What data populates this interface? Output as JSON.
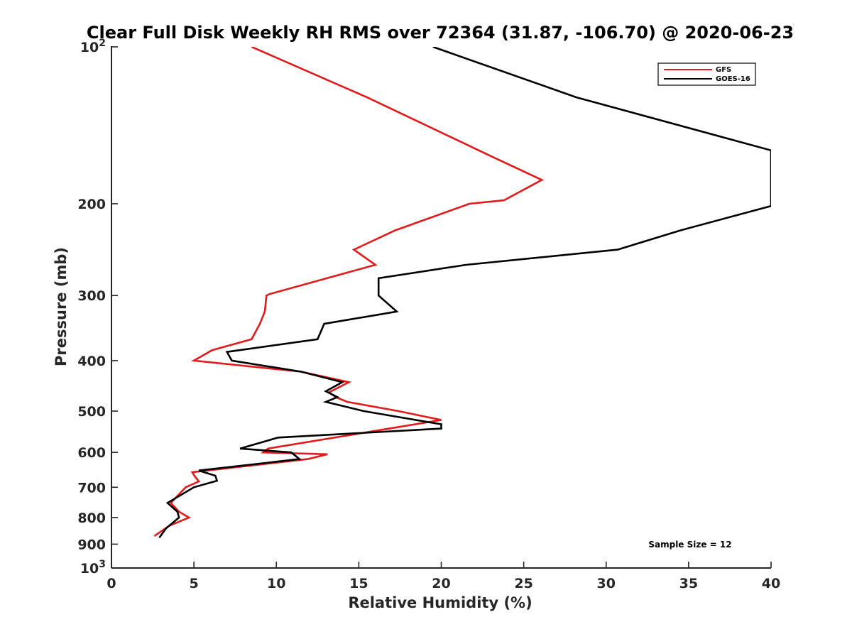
{
  "chart_data": {
    "type": "line",
    "title": "Clear Full Disk Weekly RH RMS over 72364 (31.87, -106.70) @ 2020-06-23",
    "xlabel": "Relative Humidity (%)",
    "ylabel": "Pressure (mb)",
    "xlim": [
      0,
      40
    ],
    "ylim": [
      100,
      1000
    ],
    "y_scale": "log",
    "y_reversed": true,
    "x_ticks": [
      "0",
      "5",
      "10",
      "15",
      "20",
      "25",
      "30",
      "35",
      "40"
    ],
    "y_ticks": [
      {
        "value": 100,
        "base": "10",
        "exp": "2"
      },
      {
        "value": 200,
        "label": "200"
      },
      {
        "value": 300,
        "label": "300"
      },
      {
        "value": 400,
        "label": "400"
      },
      {
        "value": 500,
        "label": "500"
      },
      {
        "value": 600,
        "label": "600"
      },
      {
        "value": 700,
        "label": "700"
      },
      {
        "value": 800,
        "label": "800"
      },
      {
        "value": 900,
        "label": "900"
      },
      {
        "value": 1000,
        "base": "10",
        "exp": "3"
      }
    ],
    "grid": false,
    "legend_position": "top-right",
    "annotation": "Sample Size = 12",
    "series": [
      {
        "name": "GFS",
        "color": "#e31a1c",
        "points": [
          [
            8.5,
            100
          ],
          [
            15.5,
            125
          ],
          [
            23.0,
            162
          ],
          [
            26.1,
            180
          ],
          [
            23.8,
            197
          ],
          [
            21.7,
            200
          ],
          [
            17.2,
            225
          ],
          [
            14.7,
            245
          ],
          [
            16.0,
            262
          ],
          [
            9.6,
            298
          ],
          [
            9.4,
            300
          ],
          [
            9.3,
            322
          ],
          [
            9.0,
            340
          ],
          [
            8.5,
            364
          ],
          [
            6.1,
            382
          ],
          [
            5.0,
            400
          ],
          [
            11.5,
            420
          ],
          [
            14.4,
            440
          ],
          [
            13.2,
            460
          ],
          [
            13.6,
            470
          ],
          [
            14.3,
            480
          ],
          [
            17.4,
            500
          ],
          [
            20.0,
            520
          ],
          [
            9.5,
            590
          ],
          [
            9.2,
            600
          ],
          [
            13.1,
            605
          ],
          [
            11.9,
            618
          ],
          [
            4.9,
            655
          ],
          [
            5.1,
            670
          ],
          [
            5.3,
            682
          ],
          [
            4.5,
            700
          ],
          [
            3.6,
            750
          ],
          [
            4.1,
            780
          ],
          [
            4.7,
            800
          ],
          [
            3.5,
            830
          ],
          [
            2.6,
            868
          ]
        ]
      },
      {
        "name": "GOES-16",
        "color": "#000000",
        "points": [
          [
            19.5,
            100
          ],
          [
            28.2,
            125
          ],
          [
            40.0,
            158
          ],
          [
            40.0,
            202
          ],
          [
            34.5,
            225
          ],
          [
            30.7,
            245
          ],
          [
            21.5,
            262
          ],
          [
            16.2,
            278
          ],
          [
            16.2,
            300
          ],
          [
            17.3,
            322
          ],
          [
            12.9,
            340
          ],
          [
            12.5,
            364
          ],
          [
            7.0,
            385
          ],
          [
            7.3,
            400
          ],
          [
            11.5,
            420
          ],
          [
            14.0,
            440
          ],
          [
            13.0,
            458
          ],
          [
            13.7,
            470
          ],
          [
            13.0,
            480
          ],
          [
            15.3,
            500
          ],
          [
            20.0,
            530
          ],
          [
            20.0,
            540
          ],
          [
            10.1,
            562
          ],
          [
            7.8,
            590
          ],
          [
            10.9,
            600
          ],
          [
            11.4,
            618
          ],
          [
            5.3,
            650
          ],
          [
            6.3,
            665
          ],
          [
            6.4,
            680
          ],
          [
            5.0,
            700
          ],
          [
            3.4,
            750
          ],
          [
            4.0,
            780
          ],
          [
            4.1,
            800
          ],
          [
            3.3,
            840
          ],
          [
            2.9,
            875
          ]
        ]
      }
    ]
  }
}
